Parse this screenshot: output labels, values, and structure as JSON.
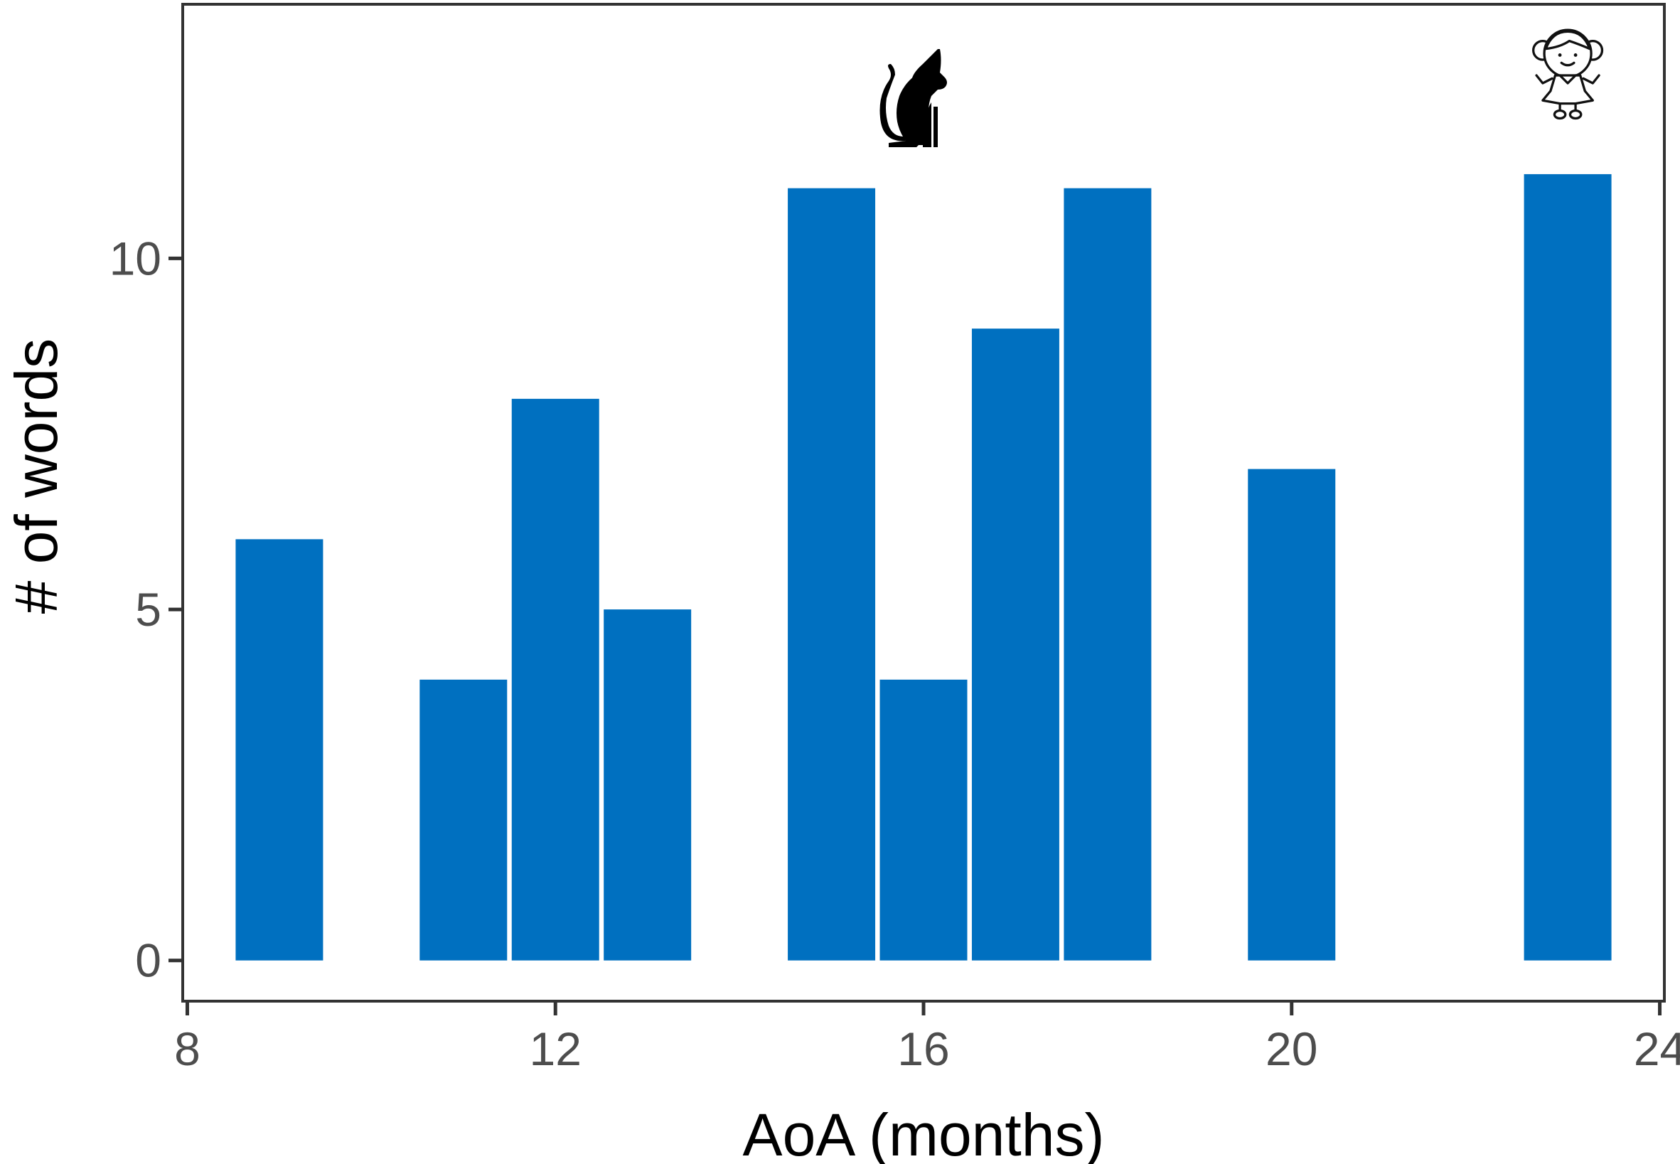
{
  "chart_data": {
    "type": "bar",
    "xlabel": "AoA (months)",
    "ylabel": "# of words",
    "x": [
      9,
      11,
      12,
      13,
      15,
      16,
      17,
      18,
      20,
      23
    ],
    "values": [
      6,
      4,
      8,
      5,
      11,
      4,
      9,
      11,
      7,
      11.2
    ],
    "xlim": [
      7.95,
      24.05
    ],
    "ylim": [
      -0.58,
      13.62
    ],
    "xticks": [
      8,
      12,
      16,
      20,
      24
    ],
    "yticks": [
      0,
      5,
      10
    ],
    "bar_width": 0.95,
    "grid": false,
    "bar_color": "#0070c0",
    "annotations": [
      {
        "icon": "cat-icon",
        "x": 16
      },
      {
        "icon": "girl-icon",
        "x": 23
      }
    ]
  }
}
